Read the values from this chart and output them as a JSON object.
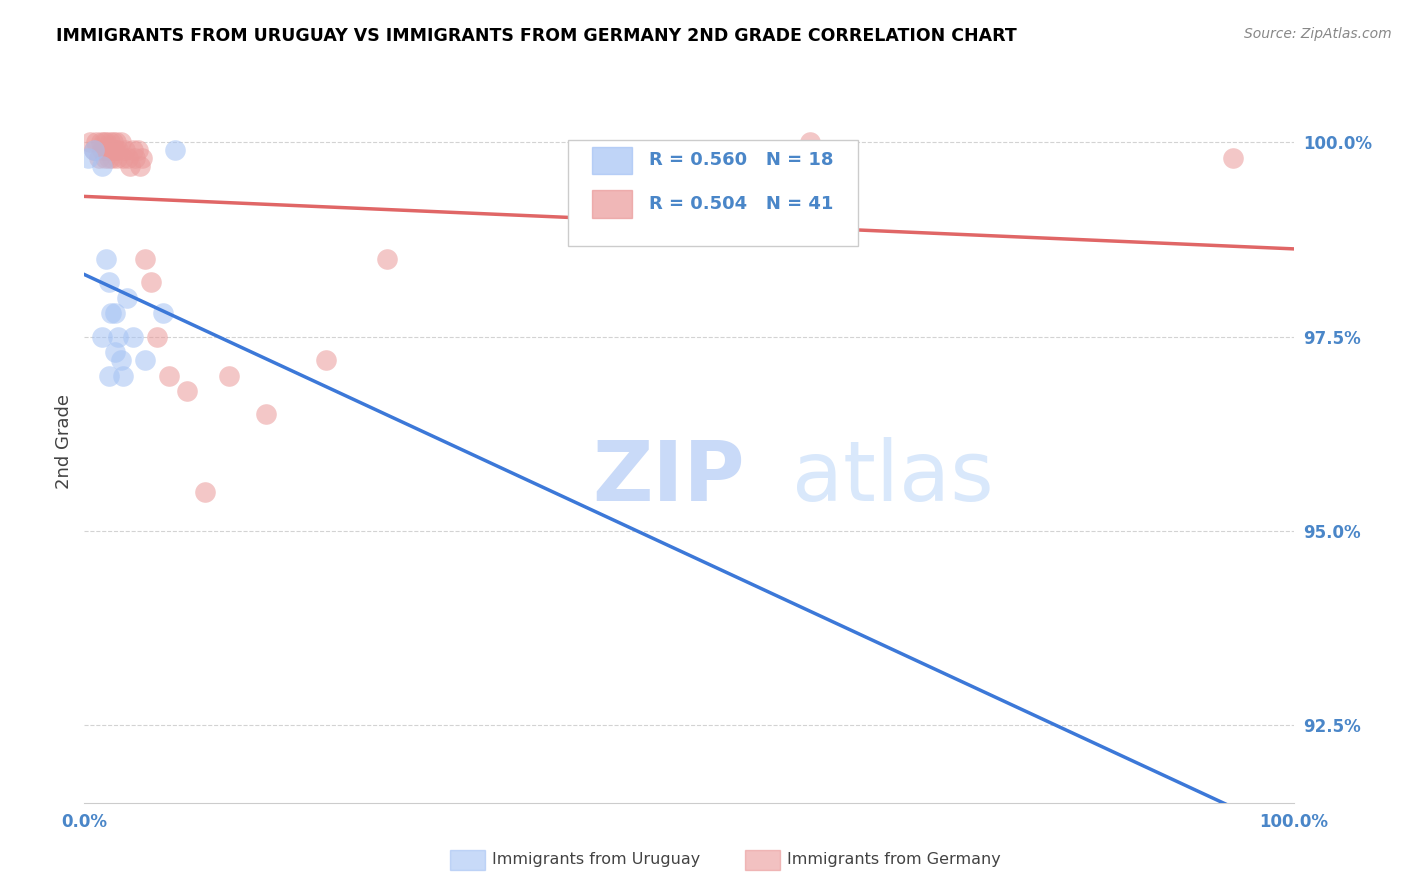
{
  "title": "IMMIGRANTS FROM URUGUAY VS IMMIGRANTS FROM GERMANY 2ND GRADE CORRELATION CHART",
  "source_text": "Source: ZipAtlas.com",
  "ylabel": "2nd Grade",
  "xmin": 0.0,
  "xmax": 100.0,
  "ymin": 91.5,
  "ymax": 100.8,
  "yticks": [
    92.5,
    95.0,
    97.5,
    100.0
  ],
  "ytick_labels": [
    "92.5%",
    "95.0%",
    "97.5%",
    "100.0%"
  ],
  "legend_r_uruguay": "R = 0.560",
  "legend_n_uruguay": "N = 18",
  "legend_r_germany": "R = 0.504",
  "legend_n_germany": "N = 41",
  "legend_label_uruguay": "Immigrants from Uruguay",
  "legend_label_germany": "Immigrants from Germany",
  "blue_color": "#a4c2f4",
  "pink_color": "#ea9999",
  "blue_line_color": "#3c78d8",
  "pink_line_color": "#e06666",
  "title_color": "#000000",
  "axis_label_color": "#434343",
  "tick_color": "#4a86c8",
  "grid_color": "#b7b7b7",
  "uruguay_x": [
    0.3,
    0.8,
    1.5,
    1.5,
    1.8,
    2.0,
    2.0,
    2.2,
    2.5,
    2.5,
    2.8,
    3.0,
    3.2,
    3.5,
    4.0,
    5.0,
    6.5,
    7.5
  ],
  "uruguay_y": [
    99.8,
    99.9,
    99.7,
    97.5,
    98.5,
    98.2,
    97.0,
    97.8,
    97.3,
    97.8,
    97.5,
    97.2,
    97.0,
    98.0,
    97.5,
    97.2,
    97.8,
    99.9
  ],
  "germany_x": [
    0.5,
    0.8,
    1.0,
    1.2,
    1.4,
    1.5,
    1.6,
    1.7,
    1.8,
    1.9,
    2.0,
    2.1,
    2.2,
    2.3,
    2.4,
    2.5,
    2.6,
    2.7,
    2.8,
    3.0,
    3.2,
    3.4,
    3.6,
    3.8,
    4.0,
    4.2,
    4.4,
    4.6,
    4.8,
    5.0,
    5.5,
    6.0,
    7.0,
    8.5,
    10.0,
    12.0,
    15.0,
    20.0,
    25.0,
    60.0,
    95.0
  ],
  "germany_y": [
    100.0,
    99.9,
    100.0,
    99.8,
    100.0,
    99.9,
    100.0,
    99.8,
    100.0,
    99.9,
    99.8,
    100.0,
    99.9,
    99.8,
    100.0,
    99.9,
    100.0,
    99.8,
    99.9,
    100.0,
    99.8,
    99.9,
    99.8,
    99.7,
    99.9,
    99.8,
    99.9,
    99.7,
    99.8,
    98.5,
    98.2,
    97.5,
    97.0,
    96.8,
    95.5,
    97.0,
    96.5,
    97.2,
    98.5,
    100.0,
    99.8
  ]
}
